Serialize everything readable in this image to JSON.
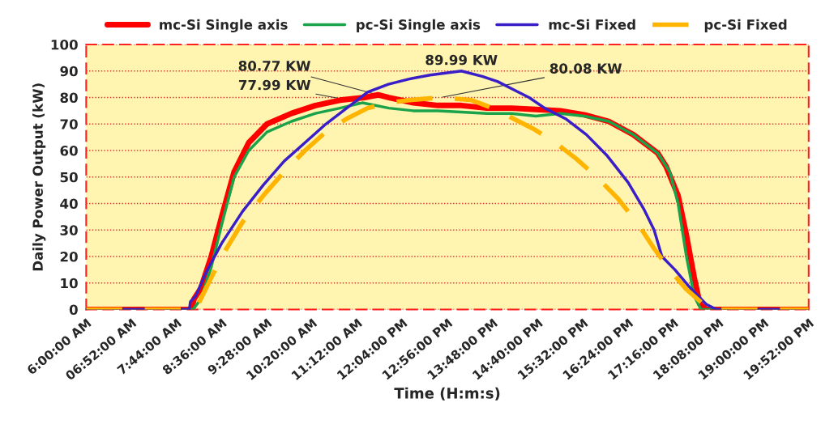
{
  "chart_data": {
    "type": "line",
    "xlabel": "Time (H:m:s)",
    "ylabel": "Daily Power Output (kW)",
    "xlim": [
      6,
      19.8667
    ],
    "ylim": [
      0,
      100
    ],
    "xticks": [
      {
        "value": 6,
        "label": "6:00:00 AM"
      },
      {
        "value": 6.8667,
        "label": "06:52:00 AM"
      },
      {
        "value": 7.7333,
        "label": "7:44:00 AM"
      },
      {
        "value": 8.6,
        "label": "8:36:00 AM"
      },
      {
        "value": 9.4667,
        "label": "9:28:00 AM"
      },
      {
        "value": 10.3333,
        "label": "10:20:00 AM"
      },
      {
        "value": 11.2,
        "label": "11:12:00 AM"
      },
      {
        "value": 12.0667,
        "label": "12:04:00 PM"
      },
      {
        "value": 12.9333,
        "label": "12:56:00 PM"
      },
      {
        "value": 13.8,
        "label": "13:48:00 PM"
      },
      {
        "value": 14.6667,
        "label": "14:40:00 PM"
      },
      {
        "value": 15.5333,
        "label": "15:32:00 PM"
      },
      {
        "value": 16.4,
        "label": "16:24:00 PM"
      },
      {
        "value": 17.2667,
        "label": "17:16:00 PM"
      },
      {
        "value": 18.1333,
        "label": "18:08:00 PM"
      },
      {
        "value": 19,
        "label": "19:00:00 PM"
      },
      {
        "value": 19.8667,
        "label": "19:52:00 PM"
      }
    ],
    "yticks": [
      0,
      10,
      20,
      30,
      40,
      50,
      60,
      70,
      80,
      90,
      100
    ],
    "grid": "y",
    "legend": "top",
    "marker": "none",
    "series": [
      {
        "name": "mc-Si Single axis",
        "color": "#ff0000",
        "line_style": "solid",
        "x": [
          6,
          8.02,
          8.07,
          8.2,
          8.4,
          8.6,
          8.84,
          9.12,
          9.47,
          9.94,
          10.4,
          10.87,
          11.34,
          11.6,
          11.81,
          12.28,
          12.75,
          13.2,
          13.69,
          14.16,
          14.63,
          15.1,
          15.56,
          16.03,
          16.5,
          16.97,
          17.13,
          17.36,
          17.52,
          17.67,
          17.78,
          17.9,
          19.8667
        ],
        "values": [
          0,
          0,
          4,
          8,
          20,
          35,
          52,
          63,
          70,
          74,
          77,
          79,
          80,
          81,
          80,
          78,
          77,
          77,
          76,
          76,
          75.5,
          75,
          73.5,
          71,
          66,
          59,
          54,
          43,
          28,
          12,
          2,
          0,
          0
        ]
      },
      {
        "name": "pc-Si Single axis",
        "color": "#1aa34a",
        "line_style": "solid",
        "x": [
          6,
          8.05,
          8.2,
          8.4,
          8.6,
          8.84,
          9.12,
          9.47,
          9.94,
          10.4,
          10.87,
          11.3,
          11.81,
          12.28,
          12.75,
          13.2,
          13.69,
          14.16,
          14.63,
          15.1,
          15.56,
          16.03,
          16.5,
          16.97,
          17.2,
          17.36,
          17.52,
          17.67,
          17.8,
          19.8667
        ],
        "values": [
          0,
          0,
          4,
          16,
          32,
          50,
          60,
          67,
          71,
          74,
          76,
          78,
          76,
          75,
          75,
          74.5,
          74,
          74,
          73,
          74,
          73,
          71,
          66,
          59,
          52,
          40,
          20,
          5,
          0,
          0
        ]
      },
      {
        "name": "mc-Si Fixed",
        "color": "#3a1fc8",
        "line_style": "solid",
        "x": [
          6,
          7.98,
          8.0,
          8.1,
          8.3,
          8.6,
          9.0,
          9.4,
          9.8,
          10.2,
          10.6,
          11.0,
          11.4,
          11.8,
          12.2,
          12.6,
          13.2,
          13.6,
          13.9,
          14.2,
          14.5,
          14.8,
          15.2,
          15.6,
          16.0,
          16.4,
          16.7,
          16.9,
          17.05,
          17.3,
          17.6,
          17.9,
          18.1,
          19.8667
        ],
        "values": [
          0,
          0,
          3,
          5,
          14,
          25,
          37,
          47,
          56,
          63,
          70,
          76,
          82,
          85,
          87,
          88.5,
          90,
          88,
          86,
          83,
          80,
          76,
          72,
          66,
          58,
          48,
          38,
          30,
          20,
          15,
          8,
          2,
          0,
          0
        ]
      },
      {
        "name": "pc-Si Fixed",
        "color": "#ffb400",
        "line_style": "dashed",
        "x": [
          6,
          8.1,
          8.3,
          8.6,
          9.0,
          9.4,
          9.8,
          10.2,
          10.6,
          11.0,
          11.4,
          11.8,
          12.2,
          12.8,
          13.4,
          13.8,
          14.2,
          14.6,
          15.0,
          15.4,
          15.8,
          16.2,
          16.6,
          16.9,
          17.2,
          17.5,
          17.9,
          18.1,
          19.8667
        ],
        "values": [
          0,
          0,
          8,
          20,
          33,
          43,
          52,
          60,
          67,
          72,
          76,
          78,
          79,
          80,
          79,
          76,
          72,
          68,
          63,
          57,
          50,
          42,
          32,
          23,
          15,
          8,
          1,
          0,
          0
        ]
      }
    ],
    "annotations": [
      {
        "text": "80.77 KW",
        "x": 11.6,
        "y": 81
      },
      {
        "text": "77.99 KW",
        "x": 11.3,
        "y": 78
      },
      {
        "text": "89.99 KW",
        "x": 13.2,
        "y": 90
      },
      {
        "text": "80.08 KW",
        "x": 12.8,
        "y": 80
      }
    ]
  }
}
